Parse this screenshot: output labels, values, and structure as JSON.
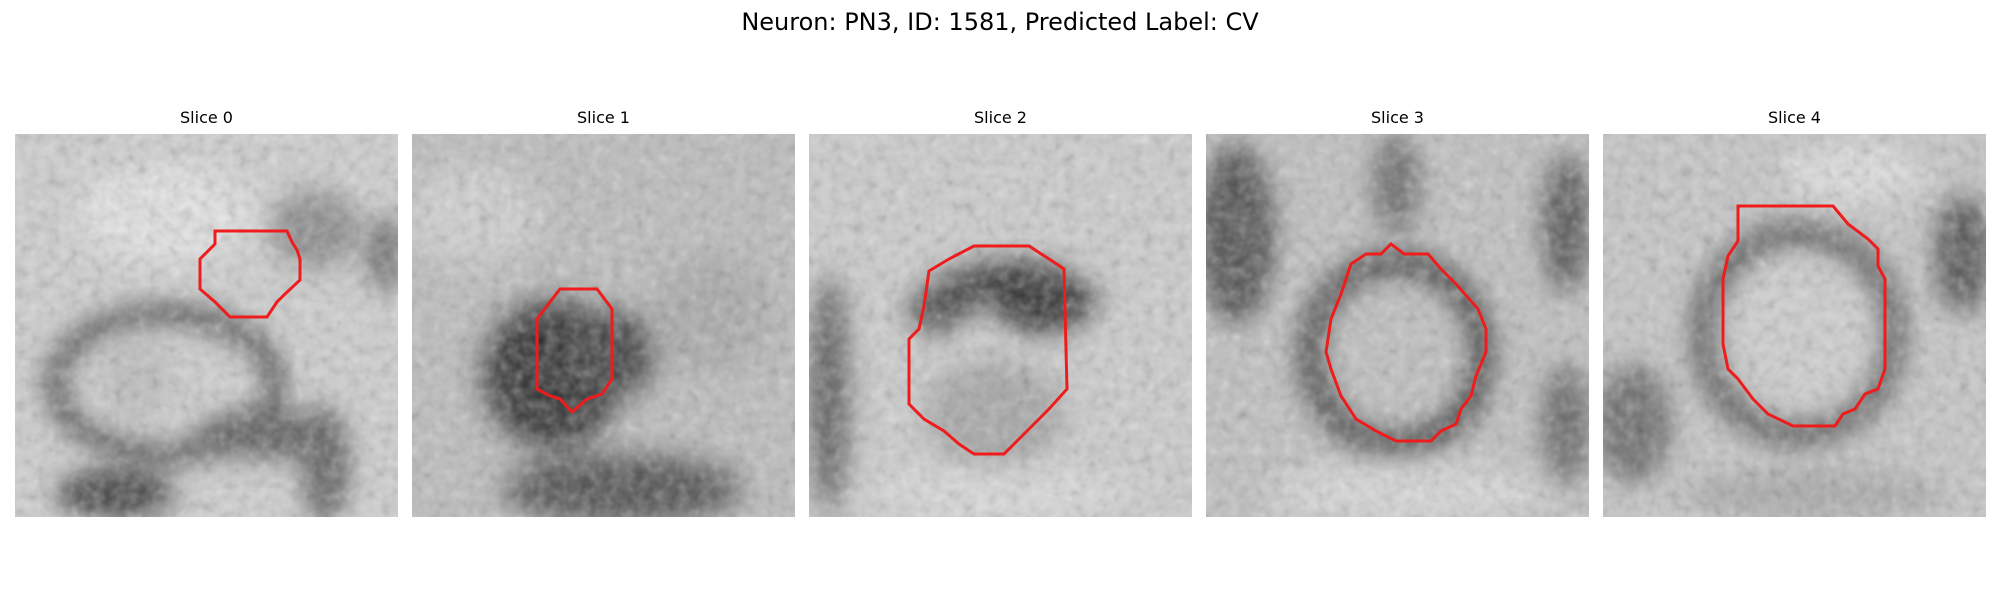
{
  "figure": {
    "title": "Neuron: PN3, ID: 1581, Predicted Label: CV"
  },
  "colors": {
    "contour": "#ee1c1c",
    "background": "#ffffff"
  },
  "slices": [
    {
      "title": "Slice 0"
    },
    {
      "title": "Slice 1"
    },
    {
      "title": "Slice 2"
    },
    {
      "title": "Slice 3"
    },
    {
      "title": "Slice 4"
    }
  ]
}
